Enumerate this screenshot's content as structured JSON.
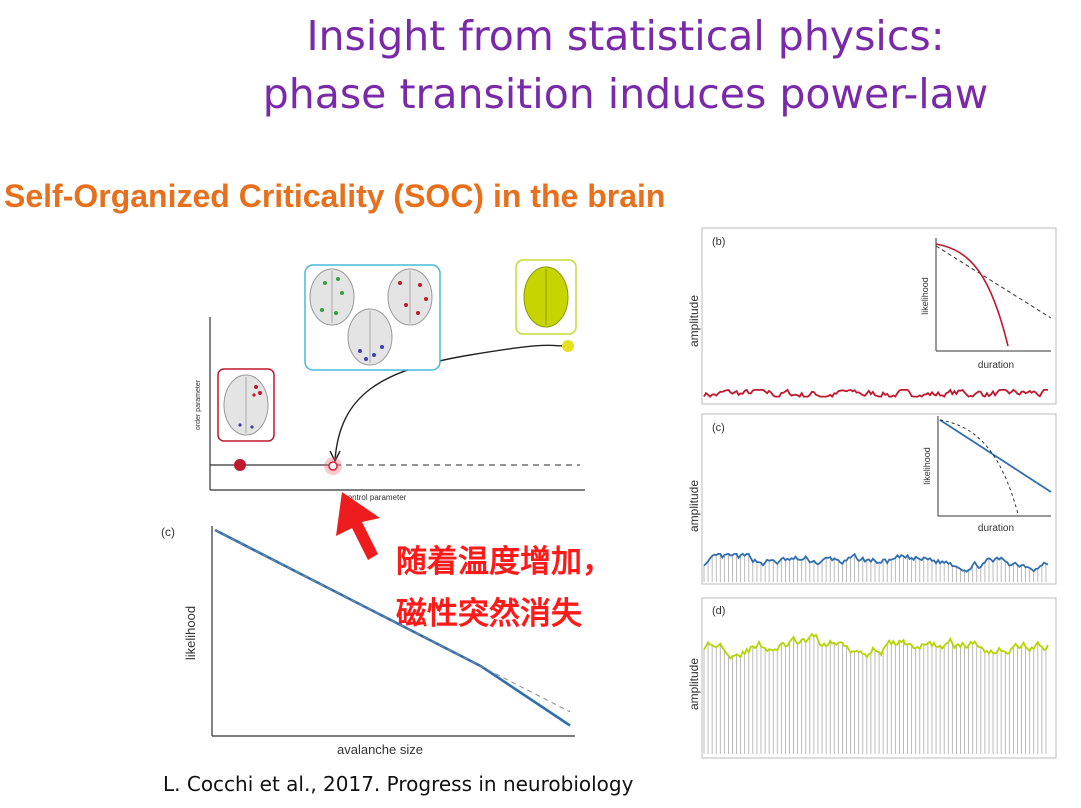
{
  "slide": {
    "title_line1": "Insight from statistical physics:",
    "title_line2": "phase transition induces power-law",
    "subtitle": "Self-Organized Criticality (SOC) in the brain",
    "annotation_line1": "随着温度增加，",
    "annotation_line2": "磁性突然消失",
    "citation": "L. Cocchi et al., 2017. Progress in neurobiology"
  },
  "colors": {
    "title": "#7a2aa8",
    "subtitle": "#e8701c",
    "annotation": "#ff1a1a",
    "subcritical": "#c0182c",
    "critical": "#2f6fb0",
    "supercritical": "#b8d400",
    "critical_box": "#48b8d8"
  },
  "phase_diagram": {
    "ylabel": "order parameter",
    "xlabel": "control parameter",
    "icons": [
      "subcritical-brain",
      "critical-brains",
      "supercritical-brain"
    ]
  },
  "chart_data": [
    {
      "type": "line",
      "panel": "(c)",
      "xlabel": "avalanche size",
      "ylabel": "likelihood",
      "scale": "log-log",
      "series": [
        {
          "style": "solid",
          "color": "#2f6fb0",
          "x": [
            1,
            10,
            100,
            1000,
            10000
          ],
          "y": [
            1,
            0.1,
            0.01,
            0.001,
            5e-05
          ]
        },
        {
          "style": "dashed",
          "color": "#888888",
          "x": [
            1,
            10,
            100,
            1000,
            10000
          ],
          "y": [
            1,
            0.1,
            0.01,
            0.001,
            0.0001
          ]
        }
      ]
    },
    {
      "type": "line",
      "panel": "(b)",
      "ylabel": "amplitude",
      "series": [
        {
          "color": "#c0182c",
          "level": 0.05
        }
      ],
      "inset": {
        "xlabel": "duration",
        "ylabel": "likelihood",
        "scale": "log-log"
      }
    },
    {
      "type": "area",
      "panel": "(c)",
      "ylabel": "amplitude",
      "series": [
        {
          "color": "#2f6fb0",
          "level": 0.3
        }
      ],
      "inset": {
        "xlabel": "duration",
        "ylabel": "likelihood",
        "scale": "log-log"
      }
    },
    {
      "type": "area",
      "panel": "(d)",
      "ylabel": "amplitude",
      "series": [
        {
          "color": "#b8d400",
          "level": 0.85
        }
      ]
    }
  ]
}
